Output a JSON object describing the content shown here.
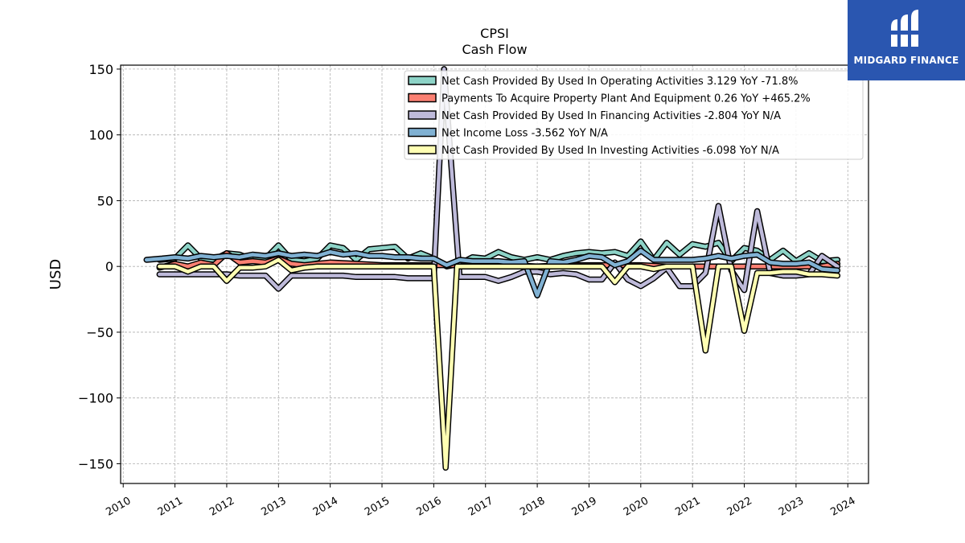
{
  "brand": {
    "name": "MIDGARD FINANCE",
    "background": "#2a56b0"
  },
  "chart_data": {
    "type": "line",
    "title": "CPSI",
    "subtitle": "Cash Flow",
    "xlabel": "",
    "ylabel": "USD",
    "ylim": [
      -165,
      153
    ],
    "xlim": [
      2009.95,
      2024.4
    ],
    "yticks": [
      150,
      100,
      50,
      0,
      -50,
      -100,
      -150
    ],
    "ytick_labels": [
      "150",
      "100",
      "50",
      "0",
      "−50",
      "−100",
      "−150"
    ],
    "xticks": [
      2010,
      2011,
      2012,
      2013,
      2014,
      2015,
      2016,
      2017,
      2018,
      2019,
      2020,
      2021,
      2022,
      2023,
      2024
    ],
    "grid": true,
    "legend_position": "upper right",
    "series": [
      {
        "name": "Net Cash Provided By Used In Operating Activities",
        "legend": "Net Cash Provided By Used In Operating Activities  3.129 YoY -71.8%",
        "color": "#8dd3c7",
        "x": [
          2010.7,
          2011.0,
          2011.25,
          2011.5,
          2011.75,
          2012.0,
          2012.25,
          2012.5,
          2012.75,
          2013.0,
          2013.25,
          2013.5,
          2013.75,
          2014.0,
          2014.25,
          2014.5,
          2014.75,
          2015.0,
          2015.25,
          2015.5,
          2015.75,
          2016.0,
          2016.25,
          2016.5,
          2016.75,
          2017.0,
          2017.25,
          2017.5,
          2017.75,
          2018.0,
          2018.25,
          2018.5,
          2018.75,
          2019.0,
          2019.25,
          2019.5,
          2019.75,
          2020.0,
          2020.25,
          2020.5,
          2020.75,
          2021.0,
          2021.25,
          2021.5,
          2021.75,
          2022.0,
          2022.25,
          2022.5,
          2022.75,
          2023.0,
          2023.25,
          2023.5,
          2023.8
        ],
        "y": [
          5,
          6,
          16,
          6,
          5,
          10,
          9,
          5,
          6,
          16,
          5,
          4,
          6,
          16,
          14,
          5,
          13,
          14,
          15,
          6,
          10,
          6,
          0,
          2,
          7,
          6,
          11,
          7,
          5,
          7,
          5,
          8,
          10,
          11,
          10,
          11,
          8,
          19,
          5,
          18,
          9,
          17,
          15,
          18,
          4,
          14,
          12,
          5,
          12,
          4,
          10,
          4,
          5
        ]
      },
      {
        "name": "Payments To Acquire Property Plant And Equipment",
        "legend": "Payments To Acquire Property Plant And Equipment  0.26 YoY +465.2%",
        "color": "#fb8072",
        "x": [
          2010.7,
          2011.0,
          2011.25,
          2011.5,
          2011.75,
          2012.0,
          2012.25,
          2012.5,
          2012.75,
          2013.0,
          2013.25,
          2013.5,
          2013.75,
          2014.0,
          2014.5,
          2015.0,
          2015.5,
          2016.0,
          2016.5,
          2017.0,
          2017.5,
          2018.0,
          2018.5,
          2019.0,
          2019.5,
          2020.0,
          2020.5,
          2021.0,
          2021.5,
          2022.0,
          2022.5,
          2023.0,
          2023.5,
          2023.8
        ],
        "y": [
          -1,
          2,
          0,
          3,
          1,
          10,
          3,
          4,
          3,
          6,
          2,
          1,
          2,
          3,
          2,
          1,
          1,
          1,
          1,
          1,
          1,
          0,
          1,
          1,
          1,
          1,
          0,
          0,
          0,
          0,
          0,
          0,
          0,
          2
        ]
      },
      {
        "name": "Net Cash Provided By Used In Financing Activities",
        "legend": "Net Cash Provided By Used In Financing Activities  -2.804 YoY N/A",
        "color": "#bebada",
        "x": [
          2010.7,
          2011.0,
          2011.25,
          2011.5,
          2011.75,
          2012.0,
          2012.25,
          2012.5,
          2012.75,
          2013.0,
          2013.25,
          2013.5,
          2013.75,
          2014.0,
          2014.25,
          2014.5,
          2014.75,
          2015.0,
          2015.25,
          2015.5,
          2015.75,
          2016.0,
          2016.2,
          2016.5,
          2016.75,
          2017.0,
          2017.25,
          2017.5,
          2017.75,
          2018.0,
          2018.25,
          2018.5,
          2018.75,
          2019.0,
          2019.25,
          2019.5,
          2019.75,
          2020.0,
          2020.25,
          2020.5,
          2020.75,
          2021.0,
          2021.25,
          2021.5,
          2021.75,
          2022.0,
          2022.25,
          2022.5,
          2022.75,
          2023.0,
          2023.25,
          2023.5,
          2023.8
        ],
        "y": [
          -6,
          -6,
          -6,
          -6,
          -6,
          -6,
          -7,
          -7,
          -7,
          -17,
          -7,
          -7,
          -7,
          -7,
          -7,
          -8,
          -8,
          -8,
          -8,
          -9,
          -9,
          -9,
          150,
          -8,
          -8,
          -8,
          -11,
          -8,
          -4,
          -4,
          -6,
          -5,
          -6,
          -10,
          -10,
          3,
          -10,
          -15,
          -9,
          -1,
          -15,
          -15,
          -5,
          46,
          -3,
          -18,
          42,
          -5,
          -7,
          -7,
          -6,
          8,
          0
        ]
      },
      {
        "name": "Net Income Loss",
        "legend": "Net Income Loss  -3.562 YoY N/A",
        "color": "#80b1d3",
        "x": [
          2010.45,
          2010.75,
          2011.0,
          2011.25,
          2011.5,
          2011.75,
          2012.0,
          2012.25,
          2012.5,
          2012.75,
          2013.0,
          2013.25,
          2013.5,
          2013.75,
          2014.0,
          2014.25,
          2014.5,
          2014.75,
          2015.0,
          2015.25,
          2015.5,
          2015.75,
          2016.0,
          2016.25,
          2016.5,
          2016.75,
          2017.0,
          2017.25,
          2017.5,
          2017.75,
          2018.0,
          2018.25,
          2018.5,
          2018.75,
          2019.0,
          2019.25,
          2019.5,
          2019.75,
          2020.0,
          2020.25,
          2020.5,
          2020.75,
          2021.0,
          2021.25,
          2021.5,
          2021.75,
          2022.0,
          2022.25,
          2022.5,
          2022.75,
          2023.0,
          2023.25,
          2023.5,
          2023.8
        ],
        "y": [
          5,
          6,
          7,
          6,
          8,
          7,
          8,
          7,
          9,
          8,
          10,
          8,
          9,
          8,
          11,
          9,
          10,
          8,
          8,
          7,
          7,
          6,
          6,
          1,
          5,
          4,
          4,
          4,
          3,
          4,
          -22,
          4,
          3,
          5,
          8,
          7,
          1,
          4,
          12,
          5,
          5,
          5,
          5,
          6,
          8,
          6,
          8,
          9,
          3,
          2,
          2,
          3,
          -2,
          -3
        ]
      },
      {
        "name": "Net Cash Provided By Used In Investing Activities",
        "legend": "Net Cash Provided By Used In Investing Activities  -6.098 YoY N/A",
        "color": "#ffffb3",
        "x": [
          2010.7,
          2011.0,
          2011.25,
          2011.5,
          2011.75,
          2012.0,
          2012.25,
          2012.5,
          2012.75,
          2013.0,
          2013.25,
          2013.5,
          2013.75,
          2014.0,
          2014.5,
          2015.0,
          2015.5,
          2016.0,
          2016.23,
          2016.45,
          2016.75,
          2017.0,
          2017.5,
          2018.0,
          2018.5,
          2019.0,
          2019.25,
          2019.5,
          2019.75,
          2020.0,
          2020.25,
          2020.5,
          2020.75,
          2021.0,
          2021.25,
          2021.5,
          2021.75,
          2022.0,
          2022.25,
          2022.5,
          2022.75,
          2023.0,
          2023.25,
          2023.5,
          2023.8
        ],
        "y": [
          0,
          0,
          -4,
          0,
          0,
          -11,
          -1,
          -1,
          0,
          5,
          -3,
          -1,
          0,
          0,
          0,
          0,
          0,
          0,
          -153,
          0,
          0,
          0,
          0,
          0,
          0,
          0,
          0,
          -12,
          0,
          0,
          -2,
          0,
          0,
          0,
          -64,
          0,
          0,
          -49,
          -5,
          -5,
          -4,
          -4,
          -6,
          -6,
          -7
        ]
      }
    ]
  }
}
